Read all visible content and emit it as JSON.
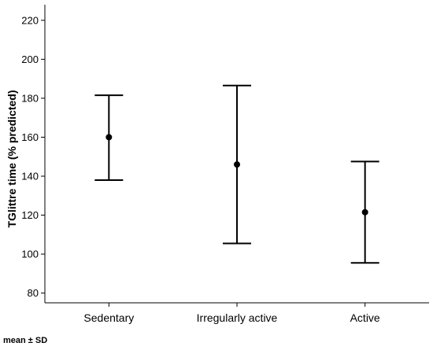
{
  "chart_data": {
    "type": "errorbar",
    "ylabel": "TGlittre time (% predicted)",
    "xlabel": "",
    "ylim": [
      75,
      228
    ],
    "yticks": [
      80,
      100,
      120,
      140,
      160,
      180,
      200,
      220
    ],
    "grid": false,
    "categories": [
      "Sedentary",
      "Irregularly active",
      "Active"
    ],
    "points": [
      {
        "category": "Sedentary",
        "mean": 160,
        "lower": 138,
        "upper": 181.5
      },
      {
        "category": "Irregularly active",
        "mean": 146,
        "lower": 105.5,
        "upper": 186.5
      },
      {
        "category": "Active",
        "mean": 121.5,
        "lower": 95.5,
        "upper": 147.5
      }
    ],
    "footnote": "mean ± SD"
  }
}
